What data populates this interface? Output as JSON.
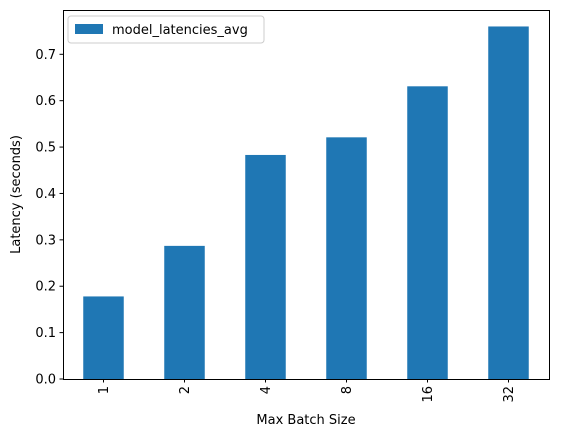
{
  "chart_data": {
    "type": "bar",
    "categories": [
      "1",
      "2",
      "4",
      "8",
      "16",
      "32"
    ],
    "series": [
      {
        "name": "model_latencies_avg",
        "values": [
          0.178,
          0.287,
          0.483,
          0.521,
          0.631,
          0.76
        ],
        "color": "#1f77b4"
      }
    ],
    "title": "",
    "xlabel": "Max Batch Size",
    "ylabel": "Latency (seconds)",
    "ylim": [
      0,
      0.7955
    ],
    "yticks": [
      0.0,
      0.1,
      0.2,
      0.3,
      0.4,
      0.5,
      0.6,
      0.7
    ],
    "ytick_labels": [
      "0.0",
      "0.1",
      "0.2",
      "0.3",
      "0.4",
      "0.5",
      "0.6",
      "0.7"
    ],
    "xtick_rotation": "vertical",
    "grid": false,
    "legend": {
      "position": "top-left",
      "entries": [
        "model_latencies_avg"
      ]
    }
  }
}
